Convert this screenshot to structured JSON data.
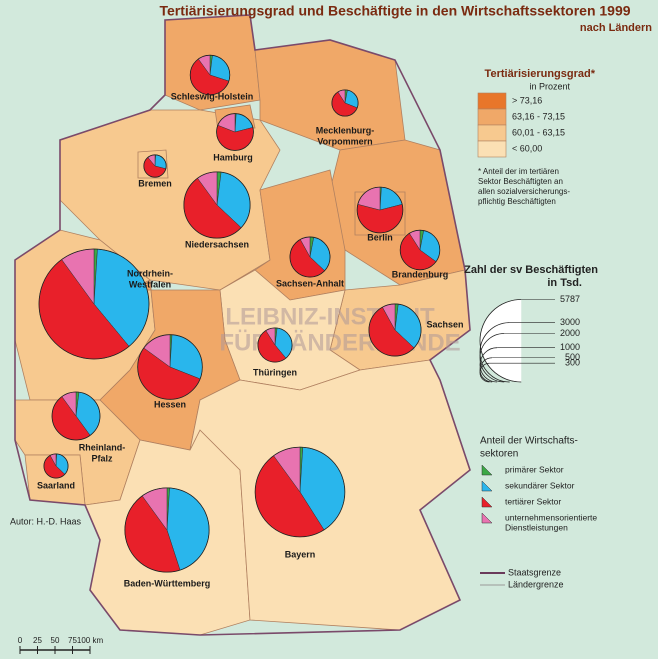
{
  "title": "Tertiärisierungsgrad und Beschäftigte in den Wirtschaftssektoren 1999",
  "subtitle": "nach Ländern",
  "class_legend": {
    "title": "Tertiärisierungsgrad*",
    "unit": "in Prozent",
    "classes": [
      {
        "label": "> 73,16",
        "color": "#e8762a"
      },
      {
        "label": "63,16 - 73,15",
        "color": "#f0a868"
      },
      {
        "label": "60,01 - 63,15",
        "color": "#f7c98f"
      },
      {
        "label": "< 60,00",
        "color": "#fbe0b4"
      }
    ]
  },
  "note": [
    "* Anteil der im tertiären",
    "Sektor Beschäftigten an",
    "allen sozialversicherungs-",
    "pflichtig Beschäftigten"
  ],
  "size_legend": {
    "title": "Zahl der sv Beschäftigten",
    "unit": "in Tsd.",
    "values": [
      5787,
      3000,
      2000,
      1000,
      500,
      300
    ]
  },
  "sector_legend": {
    "title": [
      "Anteil der Wirtschafts-",
      "sektoren"
    ],
    "sectors": [
      {
        "label": [
          "primärer Sektor"
        ],
        "color": "#3aa845"
      },
      {
        "label": [
          "sekundärer Sektor"
        ],
        "color": "#29b6ec"
      },
      {
        "label": [
          "tertiärer Sektor"
        ],
        "color": "#e8202a"
      },
      {
        "label": [
          "unternehmensorientierte",
          "Dienstleistungen"
        ],
        "color": "#e873b0"
      }
    ]
  },
  "states": [
    {
      "label": [
        "Schleswig-Holstein"
      ],
      "class": 1,
      "total": 750,
      "shares": [
        2,
        28,
        60,
        10
      ]
    },
    {
      "label": [
        "Mecklenburg-",
        "Vorpommern"
      ],
      "class": 1,
      "total": 330,
      "shares": [
        3,
        28,
        60,
        9
      ]
    },
    {
      "label": [
        "Niedersachsen"
      ],
      "class": 2,
      "total": 2100,
      "shares": [
        2,
        35,
        53,
        10
      ]
    },
    {
      "label": [
        "Brandenburg"
      ],
      "class": 1,
      "total": 750,
      "shares": [
        3,
        32,
        56,
        9
      ]
    },
    {
      "label": [
        "Sachsen-Anhalt"
      ],
      "class": 1,
      "total": 770,
      "shares": [
        3,
        34,
        55,
        8
      ]
    },
    {
      "label": [
        "Sachsen"
      ],
      "class": 2,
      "total": 1300,
      "shares": [
        2,
        35,
        55,
        8
      ]
    },
    {
      "label": [
        "Thüringen"
      ],
      "class": 3,
      "total": 560,
      "shares": [
        2,
        37,
        52,
        9
      ]
    },
    {
      "label": [
        "Nordrhein-",
        "Westfalen"
      ],
      "class": 2,
      "total": 5787,
      "shares": [
        1,
        38,
        51,
        10
      ]
    },
    {
      "label": [
        "Hessen"
      ],
      "class": 1,
      "total": 2000,
      "shares": [
        1,
        30,
        54,
        15
      ]
    },
    {
      "label": [
        "Rheinland-",
        "Pfalz"
      ],
      "class": 2,
      "total": 1100,
      "shares": [
        2,
        38,
        50,
        10
      ]
    },
    {
      "label": [
        "Saarland"
      ],
      "class": 2,
      "total": 280,
      "shares": [
        1,
        36,
        55,
        8
      ]
    },
    {
      "label": [
        "Baden-Württemberg"
      ],
      "class": 3,
      "total": 3400,
      "shares": [
        1,
        44,
        45,
        10
      ]
    },
    {
      "label": [
        "Bayern"
      ],
      "class": 3,
      "total": 3850,
      "shares": [
        1,
        40,
        49,
        10
      ]
    },
    {
      "label": [
        "Hamburg"
      ],
      "class": 1,
      "total": 650,
      "shares": [
        1,
        20,
        60,
        19
      ]
    },
    {
      "label": [
        "Bremen"
      ],
      "class": 2,
      "total": 240,
      "shares": [
        1,
        28,
        60,
        11
      ]
    },
    {
      "label": [
        "Berlin"
      ],
      "class": 1,
      "total": 1000,
      "shares": [
        1,
        20,
        58,
        21
      ]
    }
  ],
  "border_legend": [
    "Staatsgrenze",
    "Ländergrenze"
  ],
  "author": "Autor:  H.-D. Haas",
  "scale": [
    0,
    25,
    50,
    75,
    {
      "value": 100,
      "label": "100 km"
    }
  ],
  "watermark": [
    "LEIBNIZ-INSTITUT",
    "FÜR LÄNDERKUNDE"
  ]
}
